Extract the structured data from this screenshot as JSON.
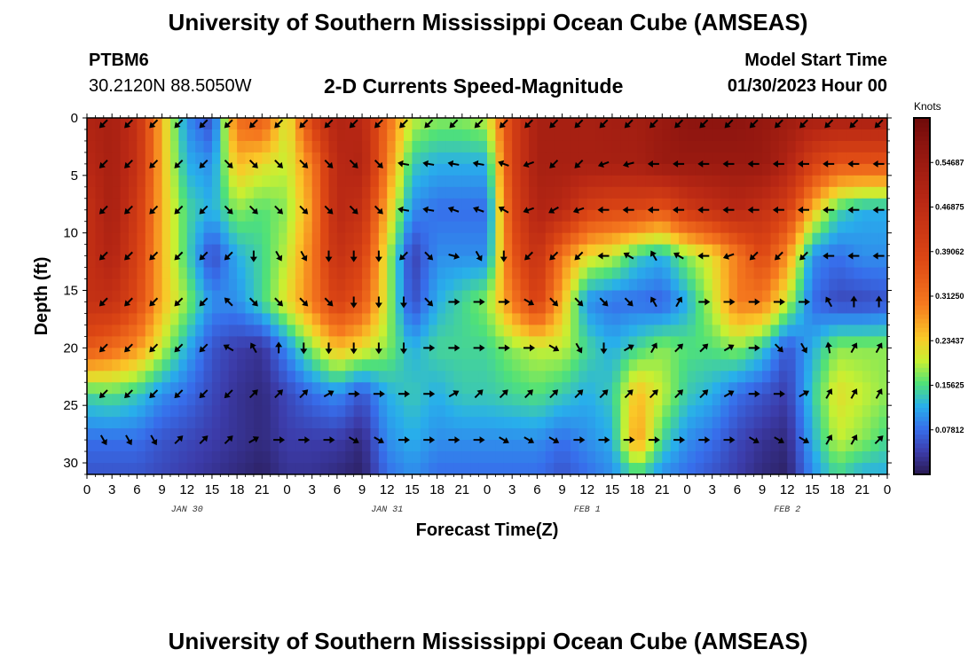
{
  "header": {
    "title": "University of Southern Mississippi Ocean Cube (AMSEAS)",
    "station": "PTBM6",
    "coords": "30.2120N  88.5050W",
    "product": "2-D Currents Speed-Magnitude",
    "start_label": "Model Start Time",
    "start_value": "01/30/2023 Hour 00"
  },
  "footer": {
    "title": "University of Southern Mississippi Ocean Cube (AMSEAS)"
  },
  "chart_data": {
    "type": "heatmap",
    "title": "2-D Currents Speed-Magnitude",
    "xlabel": "Forecast Time(Z)",
    "ylabel": "Depth (ft)",
    "x_range_hours": [
      0,
      96
    ],
    "y_range_ft": [
      0,
      31
    ],
    "y_reversed": true,
    "x_tick_labels": [
      "0",
      "3",
      "6",
      "9",
      "12",
      "15",
      "18",
      "21",
      "0",
      "3",
      "6",
      "9",
      "12",
      "15",
      "18",
      "21",
      "0",
      "3",
      "6",
      "9",
      "12",
      "15",
      "18",
      "21",
      "0",
      "3",
      "6",
      "9",
      "12",
      "15",
      "18",
      "21",
      "0"
    ],
    "x_tick_hours": [
      0,
      3,
      6,
      9,
      12,
      15,
      18,
      21,
      24,
      27,
      30,
      33,
      36,
      39,
      42,
      45,
      48,
      51,
      54,
      57,
      60,
      63,
      66,
      69,
      72,
      75,
      78,
      81,
      84,
      87,
      90,
      93,
      96
    ],
    "day_labels": [
      {
        "label": "JAN 30",
        "hour": 12
      },
      {
        "label": "JAN 31",
        "hour": 36
      },
      {
        "label": "FEB 1",
        "hour": 60
      },
      {
        "label": "FEB 2",
        "hour": 84
      }
    ],
    "y_ticks": [
      0,
      5,
      10,
      15,
      20,
      25,
      30
    ],
    "colorbar": {
      "unit": "Knots",
      "min": 0.0,
      "max": 0.625,
      "tick_values": [
        0.07812,
        0.15625,
        0.23437,
        0.3125,
        0.39062,
        0.46875,
        0.54687
      ],
      "tick_labels": [
        "0.07812",
        "0.15625",
        "0.23437",
        "0.31250",
        "0.39062",
        "0.46875",
        "0.54687"
      ]
    },
    "speed_grid": {
      "hours": [
        0,
        3,
        6,
        9,
        12,
        15,
        18,
        21,
        24,
        27,
        30,
        33,
        36,
        39,
        42,
        45,
        48,
        51,
        54,
        57,
        60,
        63,
        66,
        69,
        72,
        75,
        78,
        81,
        84,
        87,
        90,
        93,
        96
      ],
      "depths_ft": [
        0,
        4,
        8,
        12,
        16,
        20,
        24,
        28,
        31
      ],
      "values_knots": [
        [
          0.5,
          0.52,
          0.45,
          0.25,
          0.1,
          0.05,
          0.32,
          0.35,
          0.2,
          0.4,
          0.5,
          0.48,
          0.32,
          0.2,
          0.18,
          0.18,
          0.2,
          0.4,
          0.52,
          0.52,
          0.52,
          0.53,
          0.53,
          0.55,
          0.58,
          0.58,
          0.58,
          0.56,
          0.54,
          0.52,
          0.52,
          0.52,
          0.52
        ],
        [
          0.48,
          0.52,
          0.45,
          0.25,
          0.12,
          0.1,
          0.25,
          0.22,
          0.2,
          0.3,
          0.48,
          0.5,
          0.3,
          0.14,
          0.12,
          0.12,
          0.12,
          0.4,
          0.52,
          0.52,
          0.52,
          0.52,
          0.52,
          0.55,
          0.55,
          0.55,
          0.55,
          0.55,
          0.5,
          0.4,
          0.35,
          0.35,
          0.35
        ],
        [
          0.45,
          0.52,
          0.42,
          0.25,
          0.15,
          0.12,
          0.18,
          0.16,
          0.18,
          0.28,
          0.48,
          0.45,
          0.25,
          0.1,
          0.08,
          0.08,
          0.08,
          0.38,
          0.5,
          0.48,
          0.4,
          0.38,
          0.38,
          0.35,
          0.42,
          0.45,
          0.48,
          0.45,
          0.4,
          0.25,
          0.15,
          0.12,
          0.12
        ],
        [
          0.45,
          0.5,
          0.4,
          0.25,
          0.15,
          0.05,
          0.12,
          0.15,
          0.2,
          0.3,
          0.45,
          0.4,
          0.2,
          0.04,
          0.1,
          0.1,
          0.1,
          0.35,
          0.45,
          0.3,
          0.22,
          0.2,
          0.14,
          0.12,
          0.18,
          0.22,
          0.3,
          0.38,
          0.28,
          0.1,
          0.08,
          0.1,
          0.1
        ],
        [
          0.45,
          0.45,
          0.38,
          0.25,
          0.18,
          0.1,
          0.1,
          0.15,
          0.22,
          0.3,
          0.4,
          0.35,
          0.2,
          0.05,
          0.12,
          0.15,
          0.18,
          0.3,
          0.4,
          0.25,
          0.1,
          0.08,
          0.08,
          0.07,
          0.12,
          0.2,
          0.3,
          0.3,
          0.2,
          0.08,
          0.05,
          0.05,
          0.06
        ],
        [
          0.35,
          0.32,
          0.28,
          0.2,
          0.12,
          0.06,
          0.04,
          0.03,
          0.1,
          0.18,
          0.25,
          0.22,
          0.18,
          0.12,
          0.15,
          0.15,
          0.15,
          0.18,
          0.2,
          0.2,
          0.15,
          0.12,
          0.15,
          0.18,
          0.16,
          0.16,
          0.18,
          0.14,
          0.06,
          0.12,
          0.18,
          0.18,
          0.18
        ],
        [
          0.15,
          0.16,
          0.14,
          0.1,
          0.08,
          0.05,
          0.03,
          0.02,
          0.05,
          0.08,
          0.1,
          0.06,
          0.12,
          0.14,
          0.12,
          0.14,
          0.14,
          0.15,
          0.16,
          0.14,
          0.12,
          0.14,
          0.25,
          0.2,
          0.14,
          0.12,
          0.08,
          0.06,
          0.04,
          0.14,
          0.22,
          0.2,
          0.18
        ],
        [
          0.08,
          0.08,
          0.08,
          0.06,
          0.05,
          0.04,
          0.03,
          0.02,
          0.04,
          0.04,
          0.04,
          0.02,
          0.1,
          0.12,
          0.1,
          0.1,
          0.1,
          0.1,
          0.1,
          0.08,
          0.1,
          0.12,
          0.28,
          0.15,
          0.1,
          0.08,
          0.05,
          0.03,
          0.02,
          0.12,
          0.2,
          0.18,
          0.15
        ],
        [
          0.06,
          0.06,
          0.06,
          0.05,
          0.04,
          0.03,
          0.02,
          0.01,
          0.03,
          0.03,
          0.02,
          0.01,
          0.08,
          0.1,
          0.08,
          0.08,
          0.08,
          0.08,
          0.08,
          0.06,
          0.08,
          0.1,
          0.15,
          0.1,
          0.08,
          0.06,
          0.04,
          0.02,
          0.01,
          0.1,
          0.15,
          0.12,
          0.12
        ]
      ]
    },
    "vector_grid": {
      "hours": [
        2,
        5,
        8,
        11,
        14,
        17,
        20,
        23,
        26,
        29,
        32,
        35,
        38,
        41,
        44,
        47,
        50,
        53,
        56,
        59,
        62,
        65,
        68,
        71,
        74,
        77,
        80,
        83,
        86,
        89,
        92,
        95
      ],
      "depths_ft": [
        0.5,
        4,
        8,
        12,
        16,
        20,
        24,
        28
      ],
      "directions_deg_from_east": [
        [
          225,
          225,
          225,
          225,
          225,
          225,
          225,
          225,
          225,
          225,
          225,
          225,
          225,
          225,
          225,
          225,
          225,
          225,
          225,
          225,
          225,
          225,
          225,
          225,
          225,
          225,
          225,
          225,
          225,
          225,
          225,
          225
        ],
        [
          225,
          225,
          225,
          225,
          225,
          315,
          315,
          315,
          315,
          315,
          315,
          315,
          170,
          170,
          170,
          170,
          160,
          200,
          225,
          225,
          200,
          195,
          180,
          180,
          180,
          180,
          180,
          180,
          180,
          180,
          180,
          180
        ],
        [
          225,
          225,
          225,
          225,
          225,
          315,
          315,
          315,
          315,
          315,
          315,
          315,
          170,
          170,
          160,
          160,
          150,
          200,
          210,
          200,
          180,
          180,
          180,
          180,
          180,
          180,
          180,
          180,
          180,
          180,
          180,
          180
        ],
        [
          225,
          225,
          225,
          225,
          225,
          225,
          270,
          300,
          300,
          270,
          270,
          270,
          225,
          315,
          345,
          300,
          270,
          225,
          225,
          225,
          180,
          150,
          120,
          150,
          180,
          200,
          225,
          225,
          225,
          180,
          180,
          180
        ],
        [
          225,
          225,
          225,
          225,
          225,
          135,
          315,
          315,
          315,
          315,
          270,
          270,
          270,
          315,
          0,
          0,
          0,
          330,
          315,
          315,
          315,
          315,
          120,
          60,
          0,
          0,
          0,
          0,
          0,
          120,
          90,
          90
        ],
        [
          225,
          225,
          225,
          225,
          225,
          150,
          120,
          90,
          270,
          270,
          270,
          270,
          270,
          0,
          0,
          0,
          0,
          0,
          330,
          300,
          270,
          30,
          60,
          45,
          45,
          30,
          0,
          315,
          300,
          100,
          60,
          60
        ],
        [
          225,
          225,
          225,
          225,
          225,
          225,
          45,
          45,
          45,
          30,
          0,
          0,
          0,
          0,
          30,
          45,
          45,
          45,
          45,
          45,
          45,
          45,
          45,
          45,
          45,
          30,
          0,
          0,
          30,
          60,
          60,
          60
        ],
        [
          300,
          300,
          300,
          45,
          45,
          45,
          30,
          0,
          0,
          0,
          330,
          330,
          0,
          0,
          0,
          0,
          330,
          330,
          330,
          0,
          0,
          0,
          0,
          0,
          0,
          0,
          330,
          330,
          330,
          60,
          60,
          45
        ]
      ]
    }
  }
}
